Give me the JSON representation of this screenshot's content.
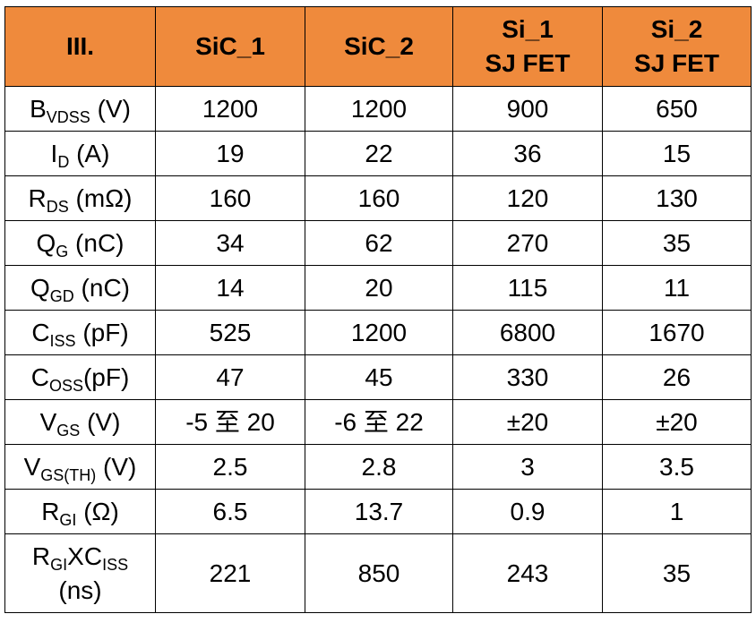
{
  "table": {
    "header": [
      [
        "III."
      ],
      [
        "SiC_1"
      ],
      [
        "SiC_2"
      ],
      [
        "Si_1",
        "SJ FET"
      ],
      [
        "Si_2",
        "SJ FET"
      ]
    ],
    "rows": [
      {
        "label": [
          [
            {
              "text": "B"
            },
            {
              "text": "VDSS",
              "sub": true
            },
            {
              "text": " (V)"
            }
          ]
        ],
        "cells": [
          1200,
          1200,
          900,
          650
        ]
      },
      {
        "label": [
          [
            {
              "text": "I"
            },
            {
              "text": "D",
              "sub": true
            },
            {
              "text": " (A)"
            }
          ]
        ],
        "cells": [
          19,
          22,
          36,
          15
        ]
      },
      {
        "label": [
          [
            {
              "text": "R"
            },
            {
              "text": "DS",
              "sub": true
            },
            {
              "text": " (mΩ)"
            }
          ]
        ],
        "cells": [
          160,
          160,
          120,
          130
        ]
      },
      {
        "label": [
          [
            {
              "text": "Q"
            },
            {
              "text": "G",
              "sub": true
            },
            {
              "text": " (nC)"
            }
          ]
        ],
        "cells": [
          34,
          62,
          270,
          35
        ]
      },
      {
        "label": [
          [
            {
              "text": "Q"
            },
            {
              "text": "GD",
              "sub": true
            },
            {
              "text": " (nC)"
            }
          ]
        ],
        "cells": [
          14,
          20,
          115,
          11
        ]
      },
      {
        "label": [
          [
            {
              "text": "C"
            },
            {
              "text": "ISS",
              "sub": true
            },
            {
              "text": " (pF)"
            }
          ]
        ],
        "cells": [
          525,
          1200,
          6800,
          1670
        ]
      },
      {
        "label": [
          [
            {
              "text": "C"
            },
            {
              "text": "OSS",
              "sub": true
            },
            {
              "text": "(pF)"
            }
          ]
        ],
        "cells": [
          47,
          45,
          330,
          26
        ]
      },
      {
        "label": [
          [
            {
              "text": "V"
            },
            {
              "text": "GS",
              "sub": true
            },
            {
              "text": " (V)"
            }
          ]
        ],
        "cells": [
          "-5 至 20",
          "-6 至 22",
          "±20",
          "±20"
        ]
      },
      {
        "label": [
          [
            {
              "text": "V"
            },
            {
              "text": "GS(TH)",
              "sub": true
            },
            {
              "text": " (V)"
            }
          ]
        ],
        "cells": [
          2.5,
          2.8,
          3,
          3.5
        ]
      },
      {
        "label": [
          [
            {
              "text": "R"
            },
            {
              "text": "GI",
              "sub": true
            },
            {
              "text": " (Ω)"
            }
          ]
        ],
        "cells": [
          6.5,
          13.7,
          0.9,
          1
        ]
      },
      {
        "label": [
          [
            {
              "text": "R"
            },
            {
              "text": "GI",
              "sub": true
            },
            {
              "text": "XC"
            },
            {
              "text": "ISS",
              "sub": true
            }
          ],
          [
            {
              "text": "(ns)"
            }
          ]
        ],
        "cells": [
          221,
          850,
          243,
          35
        ]
      }
    ]
  }
}
